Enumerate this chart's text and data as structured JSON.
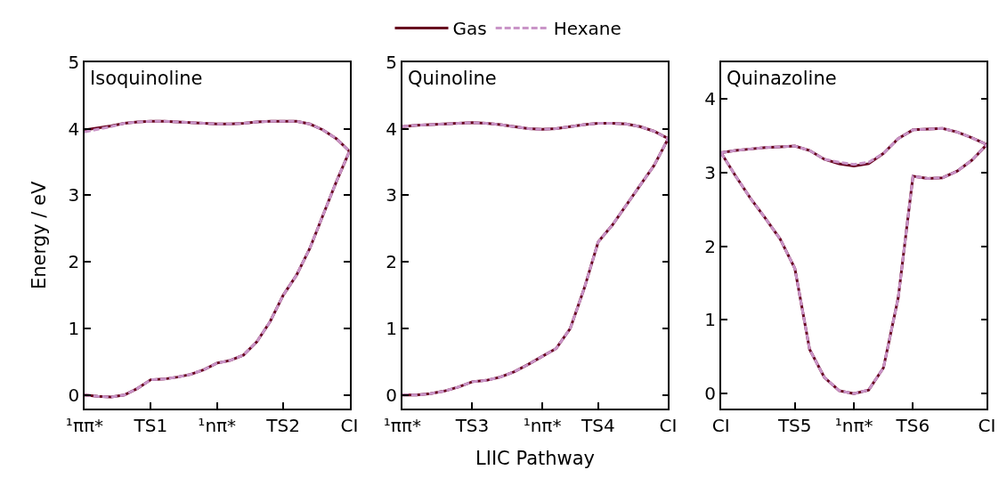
{
  "chart_data": [
    {
      "type": "line",
      "title": "Isoquinoline",
      "ylabel": "Energy / eV",
      "legend": "top",
      "ylim": [
        -0.2,
        5.0
      ],
      "yticks": [
        0,
        1,
        2,
        3,
        4,
        5
      ],
      "categories": [
        "¹ππ*",
        null,
        null,
        null,
        null,
        "TS1",
        null,
        null,
        null,
        null,
        "¹nπ*",
        null,
        null,
        null,
        null,
        "TS2",
        null,
        null,
        null,
        null,
        "CI"
      ],
      "series": [
        {
          "name": "Gas",
          "color": "#67001f",
          "line_style": "solid",
          "values": [
            3.98,
            4.01,
            4.04,
            4.08,
            4.1,
            4.11,
            4.11,
            4.1,
            4.09,
            4.08,
            4.07,
            4.07,
            4.08,
            4.1,
            4.11,
            4.11,
            4.11,
            4.07,
            3.98,
            3.85,
            3.66
          ]
        },
        {
          "color": "#67001f",
          "line_style": "solid",
          "values": [
            0.0,
            -0.02,
            -0.03,
            0.0,
            0.1,
            0.23,
            0.24,
            0.27,
            0.31,
            0.38,
            0.48,
            0.52,
            0.6,
            0.8,
            1.1,
            1.5,
            1.8,
            2.2,
            2.7,
            3.2,
            3.66
          ]
        },
        {
          "name": "Hexane",
          "color": "#c994c7",
          "line_style": "dashed",
          "values": [
            3.95,
            3.99,
            4.03,
            4.08,
            4.1,
            4.11,
            4.11,
            4.1,
            4.09,
            4.08,
            4.07,
            4.07,
            4.08,
            4.1,
            4.11,
            4.11,
            4.11,
            4.07,
            3.98,
            3.85,
            3.66
          ]
        },
        {
          "color": "#c994c7",
          "line_style": "dashed",
          "values": [
            0.0,
            -0.02,
            -0.03,
            0.0,
            0.1,
            0.23,
            0.24,
            0.27,
            0.31,
            0.38,
            0.48,
            0.52,
            0.6,
            0.8,
            1.1,
            1.5,
            1.8,
            2.2,
            2.7,
            3.2,
            3.66
          ]
        }
      ]
    },
    {
      "type": "line",
      "title": "Quinoline",
      "xlabel": "LIIC Pathway",
      "ylim": [
        -0.2,
        5.0
      ],
      "yticks": [
        0,
        1,
        2,
        3,
        4,
        5
      ],
      "categories": [
        "¹ππ*",
        null,
        null,
        null,
        null,
        "TS3",
        null,
        null,
        null,
        null,
        "¹nπ*",
        null,
        null,
        null,
        "TS4",
        null,
        null,
        null,
        null,
        "CI"
      ],
      "series": [
        {
          "name": "Gas",
          "color": "#67001f",
          "line_style": "solid",
          "values": [
            4.03,
            4.05,
            4.06,
            4.07,
            4.08,
            4.09,
            4.08,
            4.06,
            4.03,
            4.0,
            3.99,
            4.0,
            4.03,
            4.06,
            4.08,
            4.08,
            4.07,
            4.03,
            3.96,
            3.85
          ]
        },
        {
          "color": "#67001f",
          "line_style": "solid",
          "values": [
            0.0,
            0.0,
            0.02,
            0.06,
            0.12,
            0.2,
            0.22,
            0.27,
            0.35,
            0.46,
            0.58,
            0.7,
            1.0,
            1.6,
            2.3,
            2.55,
            2.85,
            3.15,
            3.45,
            3.85
          ]
        },
        {
          "name": "Hexane",
          "color": "#c994c7",
          "line_style": "dashed",
          "values": [
            4.03,
            4.05,
            4.06,
            4.07,
            4.08,
            4.09,
            4.08,
            4.06,
            4.03,
            4.0,
            3.99,
            4.0,
            4.03,
            4.06,
            4.08,
            4.08,
            4.07,
            4.03,
            3.96,
            3.85
          ]
        },
        {
          "color": "#c994c7",
          "line_style": "dashed",
          "values": [
            0.0,
            0.0,
            0.02,
            0.06,
            0.12,
            0.2,
            0.22,
            0.27,
            0.35,
            0.46,
            0.58,
            0.7,
            1.0,
            1.6,
            2.3,
            2.55,
            2.85,
            3.15,
            3.45,
            3.85
          ]
        }
      ]
    },
    {
      "type": "line",
      "title": "Quinazoline",
      "ylim": [
        -0.2,
        4.5
      ],
      "yticks": [
        0,
        1,
        2,
        3,
        4
      ],
      "categories": [
        "CI",
        null,
        null,
        null,
        null,
        "TS5",
        null,
        null,
        null,
        "¹nπ*",
        null,
        null,
        null,
        "TS6",
        null,
        null,
        null,
        null,
        "CI"
      ],
      "series": [
        {
          "name": "Gas",
          "color": "#67001f",
          "line_style": "solid",
          "values": [
            3.27,
            3.3,
            3.32,
            3.34,
            3.35,
            3.36,
            3.3,
            3.18,
            3.12,
            3.09,
            3.12,
            3.26,
            3.46,
            3.58,
            3.59,
            3.6,
            3.55,
            3.47,
            3.38
          ]
        },
        {
          "color": "#67001f",
          "line_style": "solid",
          "values": [
            3.27,
            2.95,
            2.65,
            2.38,
            2.1,
            1.7,
            0.6,
            0.22,
            0.04,
            0.0,
            0.05,
            0.35,
            1.3,
            2.95,
            2.92,
            2.93,
            3.02,
            3.17,
            3.38
          ]
        },
        {
          "name": "Hexane",
          "color": "#c994c7",
          "line_style": "dashed",
          "values": [
            3.27,
            3.3,
            3.32,
            3.34,
            3.35,
            3.36,
            3.3,
            3.18,
            3.14,
            3.11,
            3.14,
            3.26,
            3.46,
            3.58,
            3.59,
            3.6,
            3.55,
            3.47,
            3.38
          ]
        },
        {
          "color": "#c994c7",
          "line_style": "dashed",
          "values": [
            3.27,
            2.95,
            2.65,
            2.38,
            2.1,
            1.7,
            0.6,
            0.22,
            0.04,
            0.0,
            0.05,
            0.35,
            1.3,
            2.95,
            2.92,
            2.93,
            3.02,
            3.17,
            3.38
          ]
        }
      ]
    }
  ]
}
